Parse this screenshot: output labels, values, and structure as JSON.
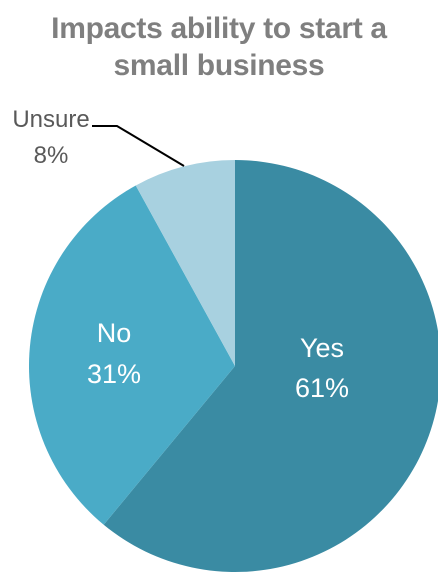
{
  "chart_data": {
    "type": "pie",
    "title_lines": [
      "Impacts ability to start a",
      "small business"
    ],
    "slices": [
      {
        "label": "Yes",
        "value": 61,
        "value_label": "61%",
        "color": "#3a8ba3"
      },
      {
        "label": "No",
        "value": 31,
        "value_label": "31%",
        "color": "#4aabc7"
      },
      {
        "label": "Unsure",
        "value": 8,
        "value_label": "8%",
        "color": "#a8d1e0"
      }
    ],
    "start_angle_deg": 0,
    "direction": "clockwise"
  }
}
